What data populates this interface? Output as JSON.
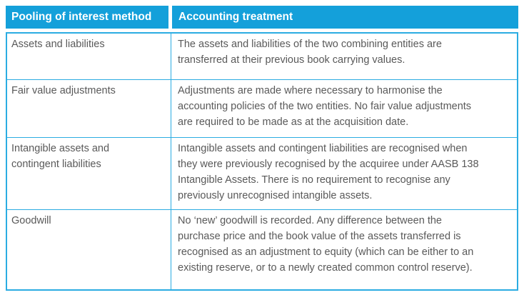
{
  "colors": {
    "header_bg": "#14A0DA",
    "table_border": "#2BACE2",
    "header_text": "#FFFFFF",
    "body_text": "#595959",
    "page_bg": "#FFFFFF"
  },
  "table": {
    "header": {
      "method": "Pooling of interest method",
      "treatment": "Accounting treatment"
    },
    "rows": [
      {
        "method": "Assets and liabilities",
        "treatment": "The assets and liabilities of the two combining entities are\ntransferred at their previous book carrying values."
      },
      {
        "method": "Fair value adjustments",
        "treatment": "Adjustments are made where necessary to harmonise the\naccounting policies of the two entities. No fair value adjustments\nare required to be made as at the acquisition date."
      },
      {
        "method": "Intangible assets and\ncontingent liabilities",
        "treatment": "Intangible assets and contingent liabilities are recognised when\nthey were previously recognised by the acquiree under AASB 138\nIntangible Assets.  There is no requirement to recognise any\npreviously unrecognised intangible assets."
      },
      {
        "method": "Goodwill",
        "treatment": "No ‘new’ goodwill is recorded. Any difference between the\npurchase price and the book value of the assets transferred is\nrecognised as an adjustment to equity (which can be either to an\nexisting reserve, or to a newly created common control reserve)."
      }
    ]
  }
}
